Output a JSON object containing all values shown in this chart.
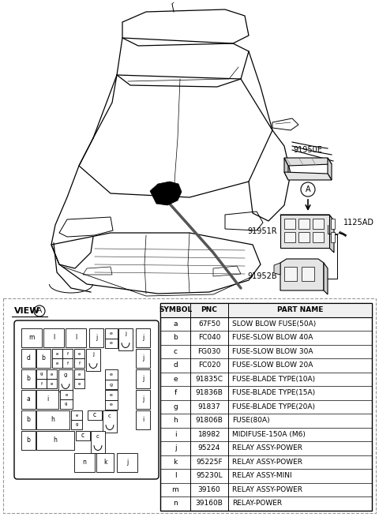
{
  "bg_color": "#ffffff",
  "text_color": "#000000",
  "table_data": {
    "headers": [
      "SYMBOL",
      "PNC",
      "PART NAME"
    ],
    "rows": [
      [
        "a",
        "67F50",
        "SLOW BLOW FUSE(50A)"
      ],
      [
        "b",
        "FC040",
        "FUSE-SLOW BLOW 40A"
      ],
      [
        "c",
        "FG030",
        "FUSE-SLOW BLOW 30A"
      ],
      [
        "d",
        "FC020",
        "FUSE-SLOW BLOW 20A"
      ],
      [
        "e",
        "91835C",
        "FUSE-BLADE TYPE(10A)"
      ],
      [
        "f",
        "91836B",
        "FUSE-BLADE TYPE(15A)"
      ],
      [
        "g",
        "91837",
        "FUSE-BLADE TYPE(20A)"
      ],
      [
        "h",
        "91806B",
        "FUSE(80A)"
      ],
      [
        "i",
        "18982",
        "MIDIFUSE-150A (M6)"
      ],
      [
        "j",
        "95224",
        "RELAY ASSY-POWER"
      ],
      [
        "k",
        "95225F",
        "RELAY ASSY-POWER"
      ],
      [
        "l",
        "95230L",
        "RELAY ASSY-MINI"
      ],
      [
        "m",
        "39160",
        "RELAY ASSY-POWER"
      ],
      [
        "n",
        "39160B",
        "RELAY-POWER"
      ]
    ]
  }
}
